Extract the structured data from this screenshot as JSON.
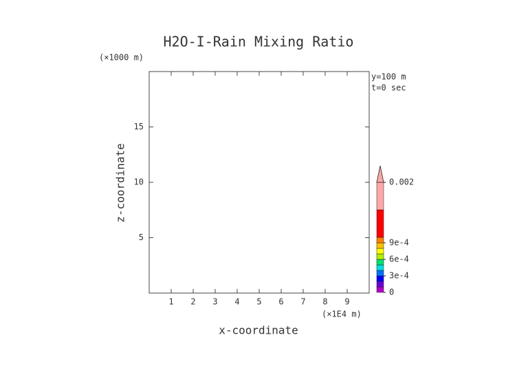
{
  "chart_data": {
    "type": "contour",
    "title": "H2O-I-Rain Mixing Ratio",
    "x_label": "x-coordinate",
    "y_label": "z-coordinate",
    "x_unit": "(×1E4 m)",
    "y_unit": "(×1000 m)",
    "annotations": [
      "y=100 m",
      "t=0 sec"
    ],
    "xlim": [
      0,
      10
    ],
    "xticks": [
      1,
      2,
      3,
      4,
      5,
      6,
      7,
      8,
      9
    ],
    "ylim": [
      0,
      20
    ],
    "yticks": [
      5,
      10,
      15
    ],
    "colorbar": {
      "levels": [
        0,
        0.0001,
        0.0002,
        0.0003,
        0.0004,
        0.0005,
        0.0006,
        0.0007,
        0.0008,
        0.0009,
        0.001,
        0.0015,
        0.002
      ],
      "colors": [
        "#b000c8",
        "#6a00d8",
        "#0000ff",
        "#0070ff",
        "#00e0e0",
        "#00e070",
        "#b0f000",
        "#ffff00",
        "#ffc000",
        "#ff8000",
        "#ff0000",
        "#ffa8a8"
      ],
      "extend": "max",
      "extend_color": "#ffa8a8",
      "ticks": [
        0,
        {
          "value": 0.0003,
          "label": "3e-4"
        },
        {
          "value": 0.0006,
          "label": "6e-4"
        },
        {
          "value": 0.0009,
          "label": "9e-4"
        },
        0.002
      ]
    }
  }
}
